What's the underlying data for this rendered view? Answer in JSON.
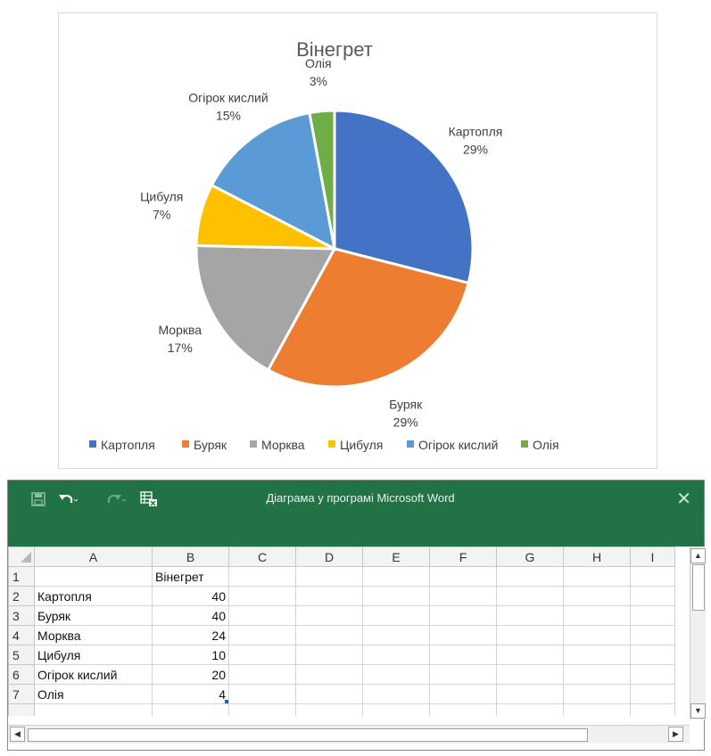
{
  "chart_data": {
    "type": "pie",
    "title": "Вінегрет",
    "categories": [
      "Картопля",
      "Буряк",
      "Морква",
      "Цибуля",
      "Огірок кислий",
      "Олія"
    ],
    "values": [
      40,
      40,
      24,
      10,
      20,
      4
    ],
    "percent_labels": [
      "29%",
      "29%",
      "17%",
      "7%",
      "15%",
      "3%"
    ],
    "colors": [
      "#4472C4",
      "#ED7D31",
      "#A5A5A5",
      "#FFC000",
      "#5B9BD5",
      "#70AD47"
    ],
    "legend_position": "bottom",
    "start_angle": "12 o'clock, clockwise"
  },
  "window": {
    "title": "Діаграма у програмі Microsoft Word",
    "close_glyph": "✕",
    "accent": "#217346"
  },
  "sheet": {
    "columns": [
      "A",
      "B",
      "C",
      "D",
      "E",
      "F",
      "G",
      "H",
      "I"
    ],
    "rows": [
      {
        "num": "1",
        "a": "",
        "b": "Вінегрет"
      },
      {
        "num": "2",
        "a": "Картопля",
        "b": "40"
      },
      {
        "num": "3",
        "a": "Буряк",
        "b": "40"
      },
      {
        "num": "4",
        "a": "Морква",
        "b": "24"
      },
      {
        "num": "5",
        "a": "Цибуля",
        "b": "10"
      },
      {
        "num": "6",
        "a": "Огірок кислий",
        "b": "20"
      },
      {
        "num": "7",
        "a": "Олія",
        "b": "4"
      }
    ]
  }
}
